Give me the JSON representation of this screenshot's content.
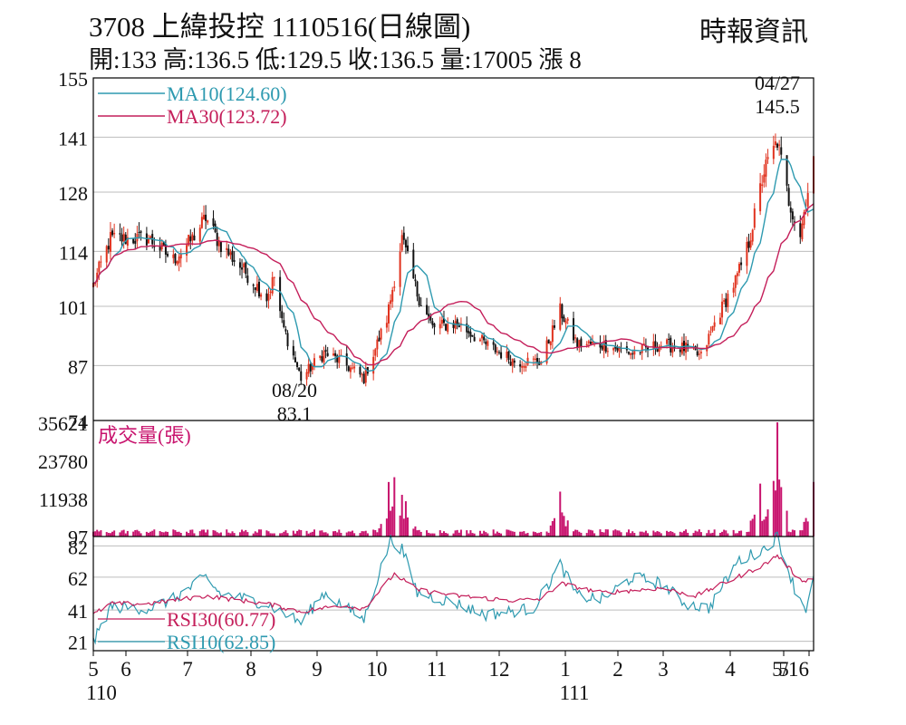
{
  "header": {
    "title": "3708  上緯投控 1110516(日線圖)",
    "source": "時報資訊",
    "summary": "開:133 高:136.5 低:129.5 收:136.5 量:17005 漲 8"
  },
  "colors": {
    "up": "#e0321e",
    "down": "#111111",
    "ma10": "#2e9ab0",
    "ma30": "#c41e5a",
    "volume": "#c8146e",
    "grid": "#bdbdbd"
  },
  "chart_data": [
    {
      "type": "candlestick",
      "panel": "price",
      "yticks": [
        155,
        141,
        128,
        114,
        101,
        87,
        74
      ],
      "ylim": [
        74,
        155
      ],
      "xtick_labels": [
        "5",
        "6",
        "7",
        "8",
        "9",
        "10",
        "11",
        "12",
        "1",
        "2",
        "3",
        "4",
        "5",
        "5/16"
      ],
      "year_labels": [
        "110",
        "111"
      ],
      "x_range": [
        "2021-05-03",
        "2022-05-16"
      ],
      "legend": [
        "MA10(124.60)",
        "MA30(123.72)"
      ],
      "annotations": [
        {
          "date": "04/27",
          "value": "145.5"
        },
        {
          "date": "08/20",
          "value": "83.1"
        }
      ],
      "points": [
        {
          "d": "2021-05-03",
          "c": 106
        },
        {
          "d": "2021-05-12",
          "c": 117
        },
        {
          "d": "2021-06-01",
          "c": 117
        },
        {
          "d": "2021-06-14",
          "c": 112
        },
        {
          "d": "2021-06-24",
          "c": 117
        },
        {
          "d": "2021-07-01",
          "c": 122
        },
        {
          "d": "2021-07-08",
          "c": 116
        },
        {
          "d": "2021-07-20",
          "c": 110
        },
        {
          "d": "2021-08-02",
          "c": 103
        },
        {
          "d": "2021-08-06",
          "c": 108
        },
        {
          "d": "2021-08-10",
          "c": 97
        },
        {
          "d": "2021-08-20",
          "c": 84
        },
        {
          "d": "2021-09-01",
          "c": 90
        },
        {
          "d": "2021-09-10",
          "c": 88
        },
        {
          "d": "2021-09-22",
          "c": 84
        },
        {
          "d": "2021-10-04",
          "c": 98
        },
        {
          "d": "2021-10-12",
          "c": 117
        },
        {
          "d": "2021-10-20",
          "c": 104
        },
        {
          "d": "2021-10-28",
          "c": 96
        },
        {
          "d": "2021-11-10",
          "c": 97
        },
        {
          "d": "2021-11-25",
          "c": 92
        },
        {
          "d": "2021-12-10",
          "c": 88
        },
        {
          "d": "2021-12-24",
          "c": 88
        },
        {
          "d": "2022-01-03",
          "c": 100
        },
        {
          "d": "2022-01-12",
          "c": 92
        },
        {
          "d": "2022-01-25",
          "c": 92
        },
        {
          "d": "2022-02-10",
          "c": 90
        },
        {
          "d": "2022-02-25",
          "c": 92
        },
        {
          "d": "2022-03-10",
          "c": 91
        },
        {
          "d": "2022-03-18",
          "c": 89
        },
        {
          "d": "2022-03-25",
          "c": 97
        },
        {
          "d": "2022-04-06",
          "c": 108
        },
        {
          "d": "2022-04-12",
          "c": 116
        },
        {
          "d": "2022-04-20",
          "c": 133
        },
        {
          "d": "2022-04-27",
          "c": 140
        },
        {
          "d": "2022-05-03",
          "c": 126
        },
        {
          "d": "2022-05-09",
          "c": 118
        },
        {
          "d": "2022-05-16",
          "c": 136.5
        }
      ]
    },
    {
      "type": "bar",
      "panel": "volume",
      "legend": "成交量(張)",
      "yticks": [
        35621,
        23780,
        11938,
        97
      ],
      "ylim": [
        0,
        35621
      ],
      "peaks": [
        {
          "d": "2021-10-05",
          "v": 17000
        },
        {
          "d": "2021-10-08",
          "v": 18500
        },
        {
          "d": "2021-10-12",
          "v": 13000
        },
        {
          "d": "2021-10-14",
          "v": 11000
        },
        {
          "d": "2022-01-03",
          "v": 14000
        },
        {
          "d": "2022-04-18",
          "v": 16500
        },
        {
          "d": "2022-04-25",
          "v": 13500
        },
        {
          "d": "2022-04-27",
          "v": 35621
        },
        {
          "d": "2022-05-16",
          "v": 17005
        }
      ],
      "baseline": 1500
    },
    {
      "type": "line",
      "panel": "rsi",
      "yticks": [
        82,
        62,
        41,
        21
      ],
      "ylim": [
        15,
        88
      ],
      "legend": [
        "RSI30(60.77)",
        "RSI10(62.85)"
      ],
      "series": [
        {
          "name": "RSI10",
          "points": [
            {
              "d": "2021-05-03",
              "v": 20
            },
            {
              "d": "2021-05-12",
              "v": 43
            },
            {
              "d": "2021-06-01",
              "v": 42
            },
            {
              "d": "2021-06-14",
              "v": 48
            },
            {
              "d": "2021-07-01",
              "v": 62
            },
            {
              "d": "2021-07-08",
              "v": 52
            },
            {
              "d": "2021-08-02",
              "v": 45
            },
            {
              "d": "2021-08-20",
              "v": 33
            },
            {
              "d": "2021-09-01",
              "v": 52
            },
            {
              "d": "2021-09-22",
              "v": 35
            },
            {
              "d": "2021-10-06",
              "v": 86
            },
            {
              "d": "2021-10-12",
              "v": 80
            },
            {
              "d": "2021-10-20",
              "v": 52
            },
            {
              "d": "2021-11-10",
              "v": 45
            },
            {
              "d": "2021-11-25",
              "v": 38
            },
            {
              "d": "2021-12-20",
              "v": 42
            },
            {
              "d": "2022-01-03",
              "v": 70
            },
            {
              "d": "2022-01-12",
              "v": 50
            },
            {
              "d": "2022-01-25",
              "v": 48
            },
            {
              "d": "2022-02-10",
              "v": 62
            },
            {
              "d": "2022-02-25",
              "v": 58
            },
            {
              "d": "2022-03-10",
              "v": 45
            },
            {
              "d": "2022-03-22",
              "v": 42
            },
            {
              "d": "2022-04-06",
              "v": 72
            },
            {
              "d": "2022-04-20",
              "v": 80
            },
            {
              "d": "2022-04-27",
              "v": 88
            },
            {
              "d": "2022-05-06",
              "v": 55
            },
            {
              "d": "2022-05-12",
              "v": 42
            },
            {
              "d": "2022-05-16",
              "v": 62.85
            }
          ]
        },
        {
          "name": "RSI30",
          "points": [
            {
              "d": "2021-05-03",
              "v": 38
            },
            {
              "d": "2021-05-12",
              "v": 45
            },
            {
              "d": "2021-06-01",
              "v": 45
            },
            {
              "d": "2021-07-01",
              "v": 50
            },
            {
              "d": "2021-08-02",
              "v": 45
            },
            {
              "d": "2021-08-20",
              "v": 40
            },
            {
              "d": "2021-09-10",
              "v": 44
            },
            {
              "d": "2021-09-22",
              "v": 42
            },
            {
              "d": "2021-10-08",
              "v": 64
            },
            {
              "d": "2021-10-20",
              "v": 54
            },
            {
              "d": "2021-11-10",
              "v": 50
            },
            {
              "d": "2021-12-10",
              "v": 47
            },
            {
              "d": "2021-12-24",
              "v": 48
            },
            {
              "d": "2022-01-03",
              "v": 58
            },
            {
              "d": "2022-01-25",
              "v": 52
            },
            {
              "d": "2022-02-25",
              "v": 55
            },
            {
              "d": "2022-03-15",
              "v": 50
            },
            {
              "d": "2022-04-06",
              "v": 62
            },
            {
              "d": "2022-04-20",
              "v": 70
            },
            {
              "d": "2022-04-27",
              "v": 76
            },
            {
              "d": "2022-05-09",
              "v": 60
            },
            {
              "d": "2022-05-16",
              "v": 60.77
            }
          ]
        }
      ]
    }
  ]
}
